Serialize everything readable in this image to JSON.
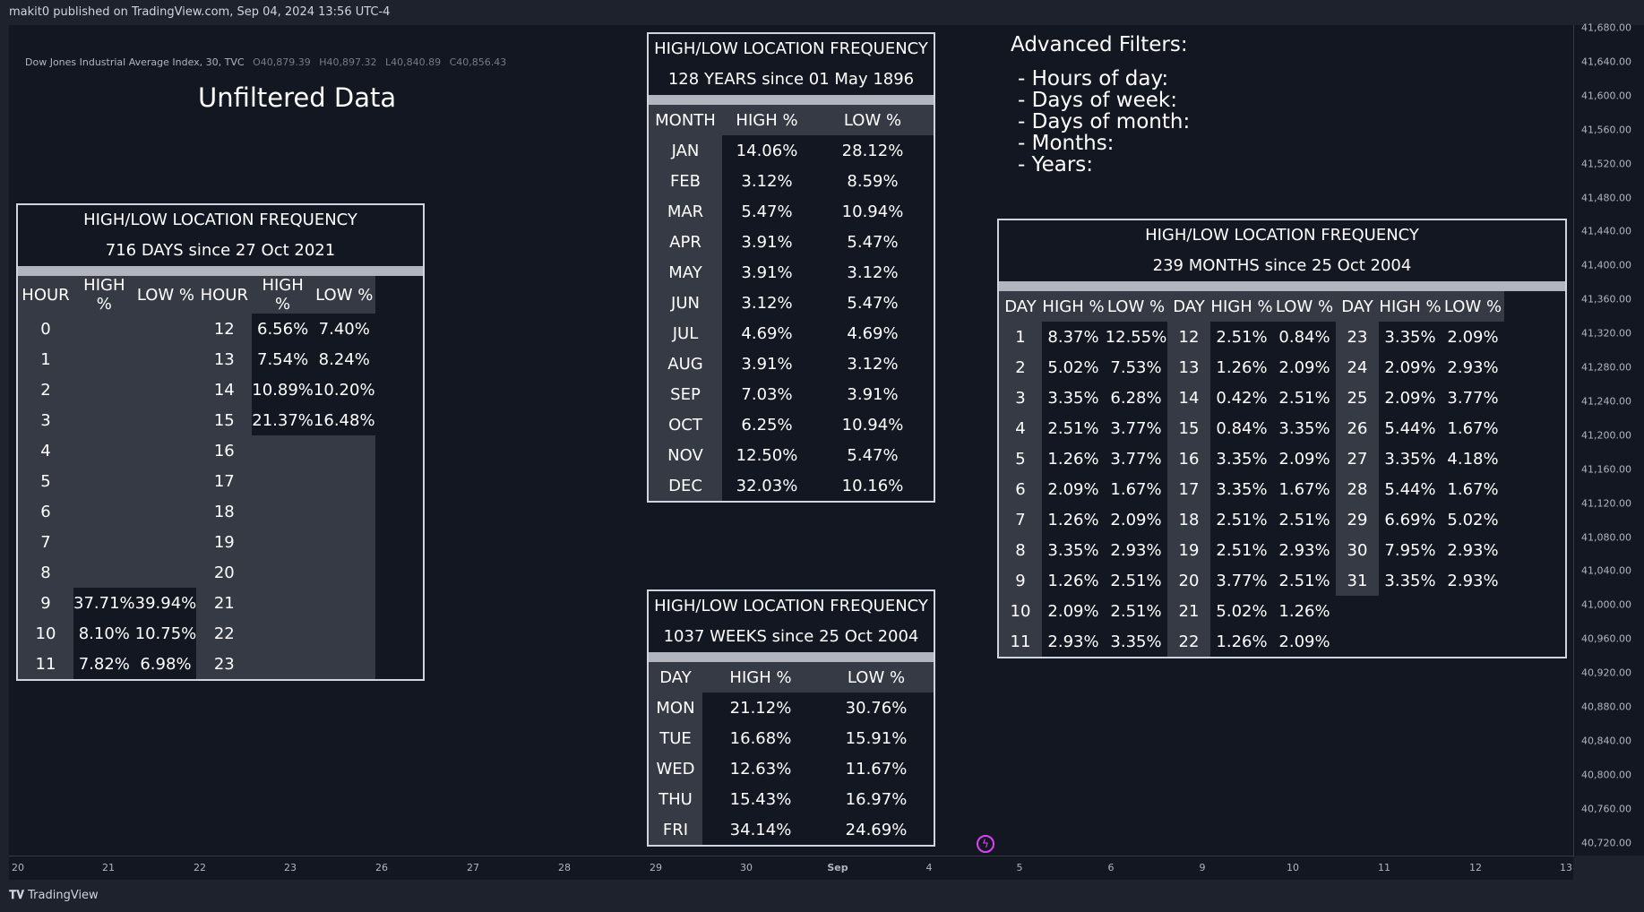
{
  "header": {
    "published": "makit0 published on TradingView.com, Sep 04, 2024 13:56 UTC-4"
  },
  "legend": {
    "symbol": "Dow Jones Industrial Average Index, 30, TVC",
    "open": "O40,879.39",
    "high": "H40,897.32",
    "low": "L40,840.89",
    "close": "C40,856.43"
  },
  "unfiltered_title": "Unfiltered Data",
  "advanced": {
    "title": "Advanced Filters:",
    "items": [
      "- Hours of day:",
      "- Days of week:",
      "- Days of month:",
      "- Months:",
      "- Years:"
    ]
  },
  "hours_table": {
    "title": "HIGH/LOW LOCATION FREQUENCY",
    "subtitle": "716 DAYS since 27 Oct 2021",
    "headers": [
      "HOUR",
      "HIGH %",
      "LOW %",
      "HOUR",
      "HIGH %",
      "LOW %"
    ],
    "rows": [
      [
        "0",
        "",
        "",
        "12",
        "6.56%",
        "7.40%"
      ],
      [
        "1",
        "",
        "",
        "13",
        "7.54%",
        "8.24%"
      ],
      [
        "2",
        "",
        "",
        "14",
        "10.89%",
        "10.20%"
      ],
      [
        "3",
        "",
        "",
        "15",
        "21.37%",
        "16.48%"
      ],
      [
        "4",
        "",
        "",
        "16",
        "",
        ""
      ],
      [
        "5",
        "",
        "",
        "17",
        "",
        ""
      ],
      [
        "6",
        "",
        "",
        "18",
        "",
        ""
      ],
      [
        "7",
        "",
        "",
        "19",
        "",
        ""
      ],
      [
        "8",
        "",
        "",
        "20",
        "",
        ""
      ],
      [
        "9",
        "37.71%",
        "39.94%",
        "21",
        "",
        ""
      ],
      [
        "10",
        "8.10%",
        "10.75%",
        "22",
        "",
        ""
      ],
      [
        "11",
        "7.82%",
        "6.98%",
        "23",
        "",
        ""
      ]
    ]
  },
  "months_table": {
    "title": "HIGH/LOW LOCATION FREQUENCY",
    "subtitle": "128 YEARS since 01 May 1896",
    "headers": [
      "MONTH",
      "HIGH %",
      "LOW %"
    ],
    "rows": [
      [
        "JAN",
        "14.06%",
        "28.12%"
      ],
      [
        "FEB",
        "3.12%",
        "8.59%"
      ],
      [
        "MAR",
        "5.47%",
        "10.94%"
      ],
      [
        "APR",
        "3.91%",
        "5.47%"
      ],
      [
        "MAY",
        "3.91%",
        "3.12%"
      ],
      [
        "JUN",
        "3.12%",
        "5.47%"
      ],
      [
        "JUL",
        "4.69%",
        "4.69%"
      ],
      [
        "AUG",
        "3.91%",
        "3.12%"
      ],
      [
        "SEP",
        "7.03%",
        "3.91%"
      ],
      [
        "OCT",
        "6.25%",
        "10.94%"
      ],
      [
        "NOV",
        "12.50%",
        "5.47%"
      ],
      [
        "DEC",
        "32.03%",
        "10.16%"
      ]
    ]
  },
  "weekdays_table": {
    "title": "HIGH/LOW LOCATION FREQUENCY",
    "subtitle": "1037 WEEKS since 25 Oct 2004",
    "headers": [
      "DAY",
      "HIGH %",
      "LOW %"
    ],
    "rows": [
      [
        "MON",
        "21.12%",
        "30.76%"
      ],
      [
        "TUE",
        "16.68%",
        "15.91%"
      ],
      [
        "WED",
        "12.63%",
        "11.67%"
      ],
      [
        "THU",
        "15.43%",
        "16.97%"
      ],
      [
        "FRI",
        "34.14%",
        "24.69%"
      ]
    ]
  },
  "monthdays_table": {
    "title": "HIGH/LOW LOCATION FREQUENCY",
    "subtitle": "239 MONTHS since 25 Oct 2004",
    "headers": [
      "DAY",
      "HIGH %",
      "LOW %",
      "DAY",
      "HIGH %",
      "LOW %",
      "DAY",
      "HIGH %",
      "LOW %"
    ],
    "rows": [
      [
        "1",
        "8.37%",
        "12.55%",
        "12",
        "2.51%",
        "0.84%",
        "23",
        "3.35%",
        "2.09%"
      ],
      [
        "2",
        "5.02%",
        "7.53%",
        "13",
        "1.26%",
        "2.09%",
        "24",
        "2.09%",
        "2.93%"
      ],
      [
        "3",
        "3.35%",
        "6.28%",
        "14",
        "0.42%",
        "2.51%",
        "25",
        "2.09%",
        "3.77%"
      ],
      [
        "4",
        "2.51%",
        "3.77%",
        "15",
        "0.84%",
        "3.35%",
        "26",
        "5.44%",
        "1.67%"
      ],
      [
        "5",
        "1.26%",
        "3.77%",
        "16",
        "3.35%",
        "2.09%",
        "27",
        "3.35%",
        "4.18%"
      ],
      [
        "6",
        "2.09%",
        "1.67%",
        "17",
        "3.35%",
        "1.67%",
        "28",
        "5.44%",
        "1.67%"
      ],
      [
        "7",
        "1.26%",
        "2.09%",
        "18",
        "2.51%",
        "2.51%",
        "29",
        "6.69%",
        "5.02%"
      ],
      [
        "8",
        "3.35%",
        "2.93%",
        "19",
        "2.51%",
        "2.93%",
        "30",
        "7.95%",
        "2.93%"
      ],
      [
        "9",
        "1.26%",
        "2.51%",
        "20",
        "3.77%",
        "2.51%",
        "31",
        "3.35%",
        "2.93%"
      ],
      [
        "10",
        "2.09%",
        "2.51%",
        "21",
        "5.02%",
        "1.26%",
        "",
        "",
        ""
      ],
      [
        "11",
        "2.93%",
        "3.35%",
        "22",
        "1.26%",
        "2.09%",
        "",
        "",
        ""
      ]
    ]
  },
  "y_axis": [
    "41,680.00",
    "41,640.00",
    "41,600.00",
    "41,560.00",
    "41,520.00",
    "41,480.00",
    "41,440.00",
    "41,400.00",
    "41,360.00",
    "41,320.00",
    "41,280.00",
    "41,240.00",
    "41,200.00",
    "41,160.00",
    "41,120.00",
    "41,080.00",
    "41,040.00",
    "41,000.00",
    "40,960.00",
    "40,920.00",
    "40,880.00",
    "40,840.00",
    "40,800.00",
    "40,760.00",
    "40,720.00"
  ],
  "x_axis": [
    "20",
    "21",
    "22",
    "23",
    "26",
    "27",
    "28",
    "29",
    "30",
    "Sep",
    "4",
    "5",
    "6",
    "9",
    "10",
    "11",
    "12",
    "13"
  ],
  "footer": {
    "brand": "TradingView"
  }
}
